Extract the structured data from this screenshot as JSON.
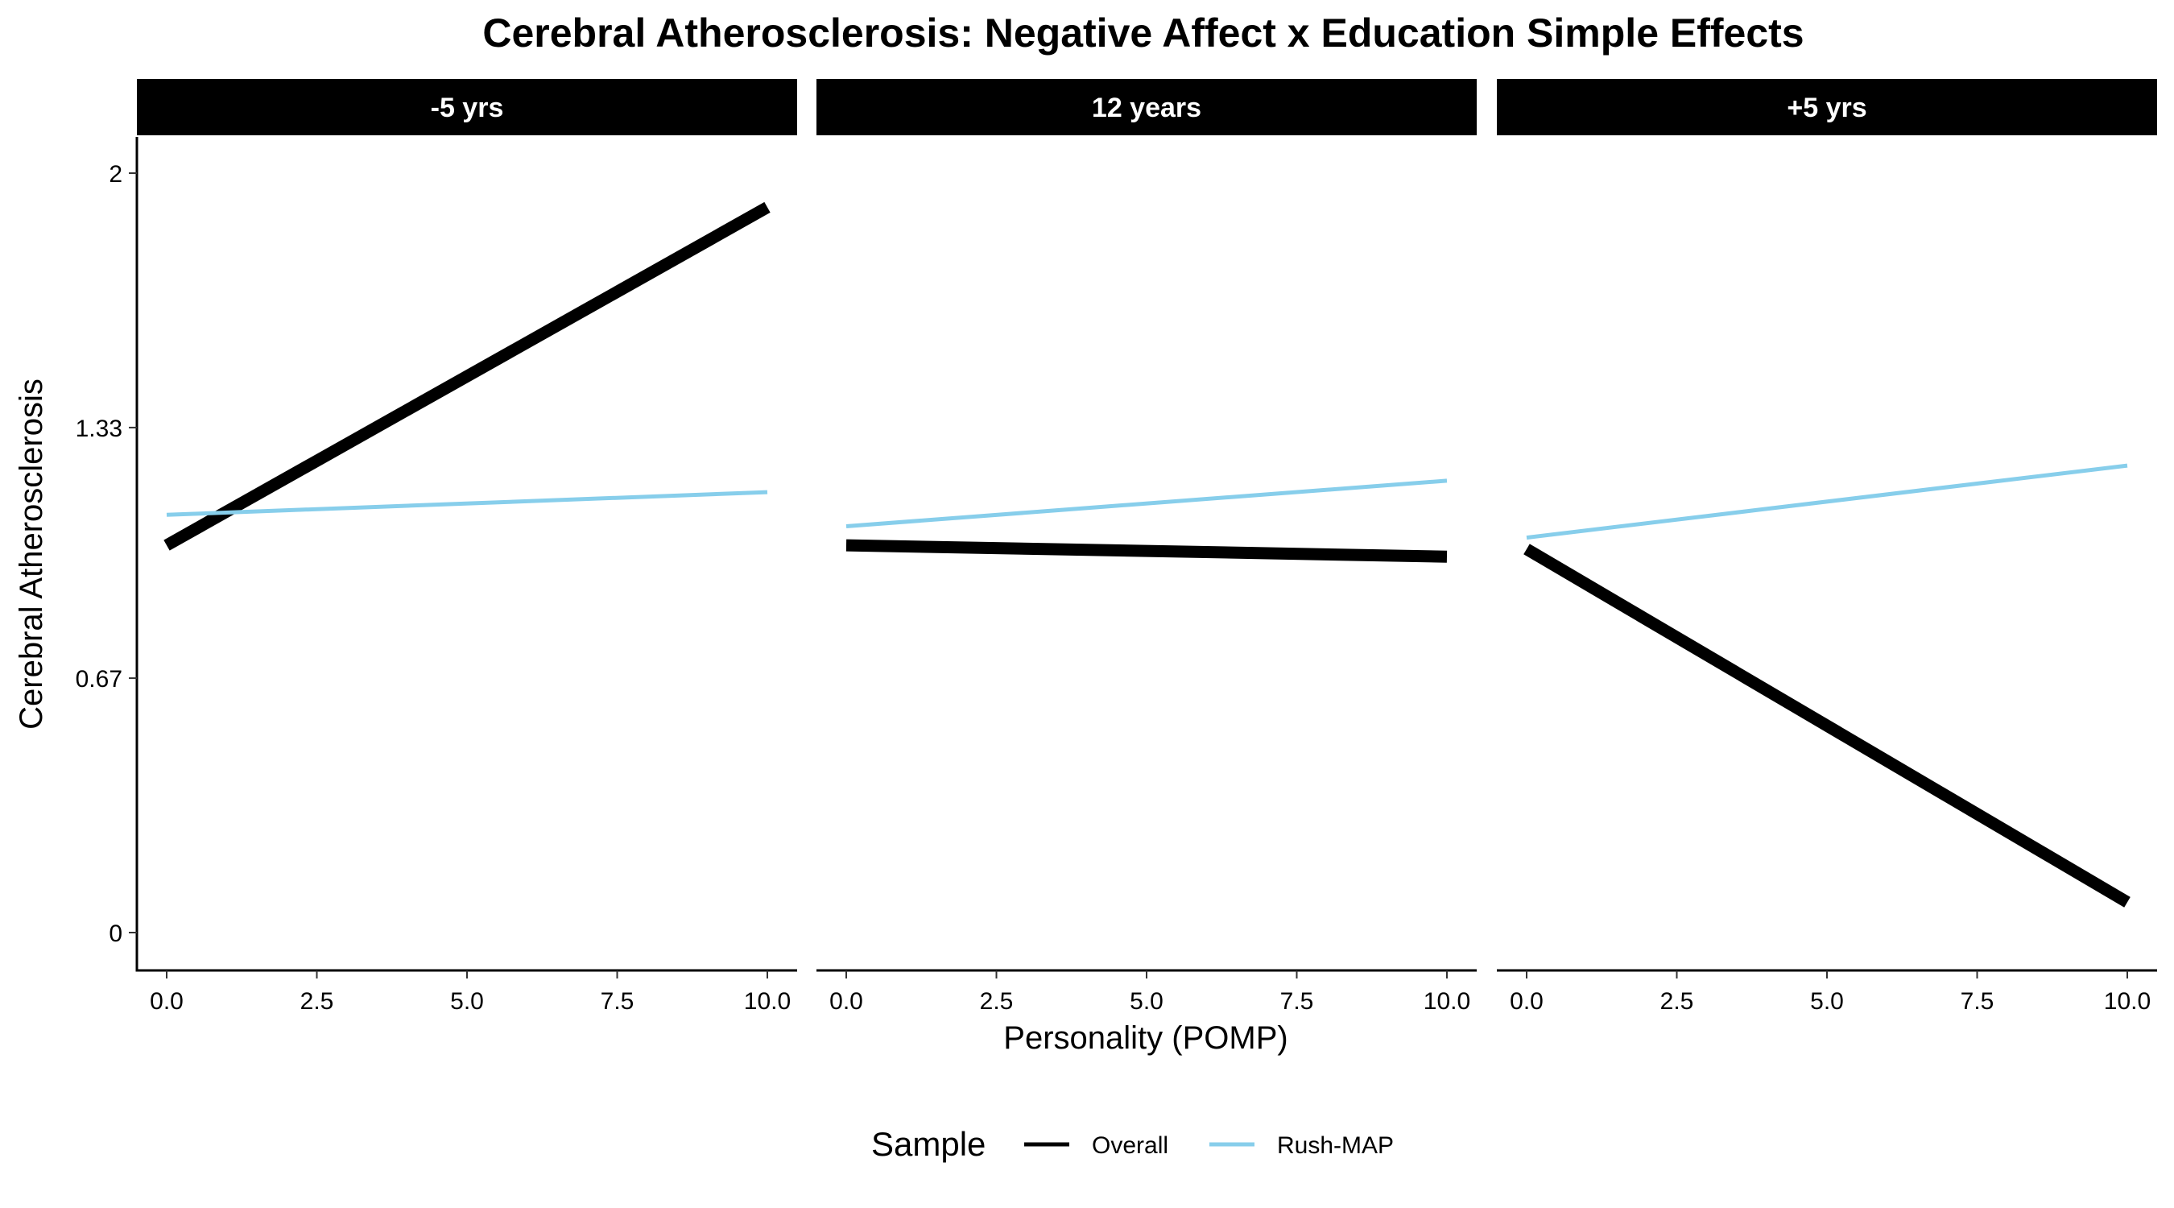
{
  "chart_data": {
    "type": "line",
    "title": "Cerebral Atherosclerosis: Negative Affect x Education Simple Effects",
    "xlabel": "Personality (POMP)",
    "ylabel": "Cerebral Atherosclerosis",
    "xlim": [
      0,
      10
    ],
    "ylim": [
      0,
      2
    ],
    "x_ticks": [
      "0.0",
      "2.5",
      "5.0",
      "7.5",
      "10.0"
    ],
    "y_ticks": [
      "0",
      "0.67",
      "1.33",
      "2"
    ],
    "grid": false,
    "legend": {
      "title": "Sample",
      "position": "bottom",
      "entries": [
        "Overall",
        "Rush-MAP"
      ]
    },
    "colors": {
      "Overall": "#000000",
      "Rush-MAP": "#87CEEB"
    },
    "panels": [
      {
        "facet": "-5 yrs",
        "series": [
          {
            "name": "Overall",
            "x": [
              0,
              10
            ],
            "y": [
              1.02,
              1.91
            ]
          },
          {
            "name": "Rush-MAP",
            "x": [
              0,
              10
            ],
            "y": [
              1.1,
              1.16
            ]
          }
        ]
      },
      {
        "facet": "12 years",
        "series": [
          {
            "name": "Overall",
            "x": [
              0,
              10
            ],
            "y": [
              1.02,
              0.99
            ]
          },
          {
            "name": "Rush-MAP",
            "x": [
              0,
              10
            ],
            "y": [
              1.07,
              1.19
            ]
          }
        ]
      },
      {
        "facet": "+5 yrs",
        "series": [
          {
            "name": "Overall",
            "x": [
              0,
              10
            ],
            "y": [
              1.01,
              0.08
            ]
          },
          {
            "name": "Rush-MAP",
            "x": [
              0,
              10
            ],
            "y": [
              1.04,
              1.23
            ]
          }
        ]
      }
    ]
  }
}
